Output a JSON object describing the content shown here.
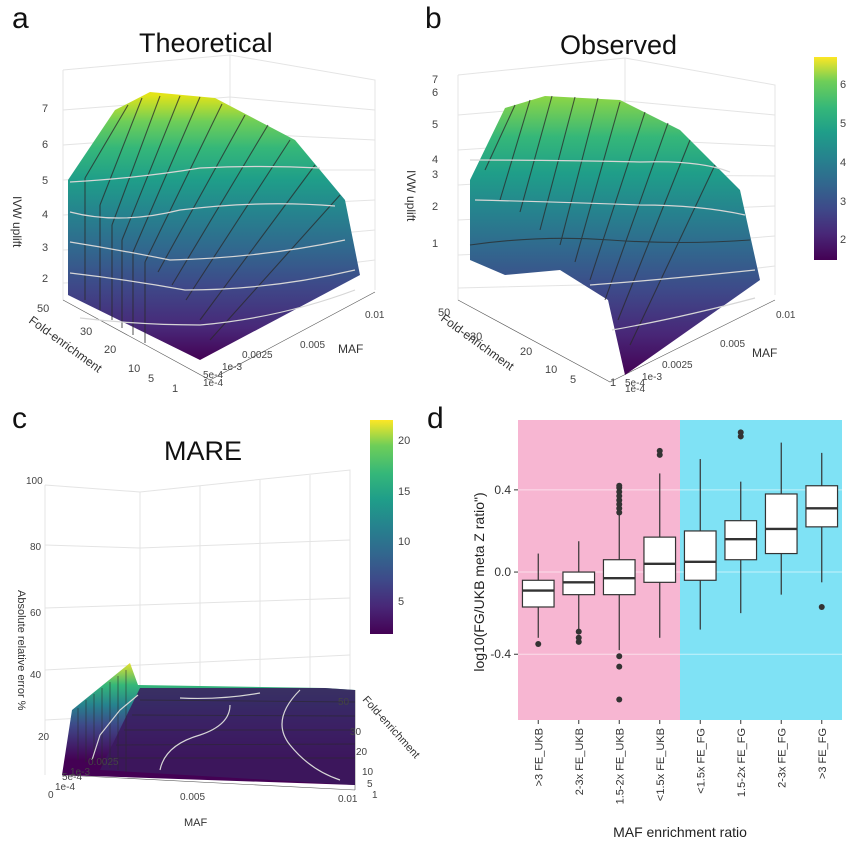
{
  "panels": {
    "a": {
      "letter": "a",
      "title": "Theoretical"
    },
    "b": {
      "letter": "b",
      "title": "Observed"
    },
    "c": {
      "letter": "c",
      "title": "MARE"
    },
    "d": {
      "letter": "d"
    }
  },
  "chart_data": [
    {
      "type": "surface",
      "panel": "a",
      "title": "Theoretical",
      "zlabel": "IVW uplift",
      "xlabel": "Fold-enrichment",
      "ylabel": "MAF",
      "z_ticks": [
        "2",
        "3",
        "4",
        "5",
        "6",
        "7"
      ],
      "x_ticks": [
        "50",
        "30",
        "20",
        "10",
        "5",
        "1"
      ],
      "y_ticks": [
        "1e-4",
        "5e-4",
        "1e-3",
        "0.0025",
        "0.005",
        "0.01"
      ],
      "z_range": [
        1,
        7.5
      ],
      "colorscale": "viridis"
    },
    {
      "type": "surface",
      "panel": "b",
      "title": "Observed",
      "zlabel": "IVW uplift",
      "xlabel": "Fold-enrichment",
      "ylabel": "MAF",
      "z_ticks": [
        "1",
        "2",
        "3",
        "4",
        "5",
        "6",
        "7"
      ],
      "x_ticks": [
        "50",
        "30",
        "20",
        "10",
        "5",
        "1"
      ],
      "y_ticks": [
        "1e-4",
        "5e-4",
        "1e-3",
        "0.0025",
        "0.005",
        "0.01"
      ],
      "colorbar_ticks": [
        "2",
        "3",
        "4",
        "5",
        "6"
      ],
      "colorscale": "viridis"
    },
    {
      "type": "surface",
      "panel": "c",
      "title": "MARE",
      "zlabel": "Absolute relative error %",
      "xlabel": "MAF",
      "ylabel": "Fold-enrichment",
      "z_ticks": [
        "20",
        "40",
        "60",
        "80",
        "100"
      ],
      "x_ticks": [
        "0",
        "1e-4",
        "5e-4",
        "1e-3",
        "0.0025",
        "0.005",
        "0.01"
      ],
      "y_ticks": [
        "1",
        "5",
        "10",
        "20",
        "30",
        "50"
      ],
      "colorbar_ticks": [
        "5",
        "10",
        "15",
        "20"
      ],
      "colorscale": "viridis"
    },
    {
      "type": "box",
      "panel": "d",
      "xlabel": "MAF enrichment ratio",
      "ylabel": "log10(FG/UKB meta Z ratio\")",
      "y_ticks": [
        "-0.4",
        "0.0",
        "0.4"
      ],
      "ylim": [
        -0.72,
        0.74
      ],
      "background_regions": [
        {
          "from": 0,
          "to": 4,
          "color": "#f7b6d2"
        },
        {
          "from": 4,
          "to": 8,
          "color": "#7fe2f5"
        }
      ],
      "categories": [
        ">3 FE_UKB",
        "2-3x FE_UKB",
        "1.5-2x FE_UKB",
        "<1.5x FE_UKB",
        "<1.5x FE_FG",
        "1.5-2x FE_FG",
        "2-3x FE_FG",
        ">3 FE_FG"
      ],
      "boxes": [
        {
          "min": -0.32,
          "q1": -0.17,
          "median": -0.09,
          "q3": -0.04,
          "max": 0.09,
          "outliers": [
            -0.35
          ]
        },
        {
          "min": -0.28,
          "q1": -0.11,
          "median": -0.05,
          "q3": 0.0,
          "max": 0.15,
          "outliers": [
            -0.29,
            -0.32,
            -0.34
          ]
        },
        {
          "min": -0.38,
          "q1": -0.11,
          "median": -0.03,
          "q3": 0.06,
          "max": 0.28,
          "outliers": [
            0.29,
            0.31,
            0.33,
            0.35,
            0.37,
            0.39,
            0.41,
            0.42,
            -0.41,
            -0.46,
            -0.62
          ]
        },
        {
          "min": -0.32,
          "q1": -0.05,
          "median": 0.04,
          "q3": 0.17,
          "max": 0.48,
          "outliers": [
            0.57,
            0.59
          ]
        },
        {
          "min": -0.28,
          "q1": -0.04,
          "median": 0.05,
          "q3": 0.2,
          "max": 0.55,
          "outliers": []
        },
        {
          "min": -0.2,
          "q1": 0.06,
          "median": 0.16,
          "q3": 0.25,
          "max": 0.44,
          "outliers": [
            0.66,
            0.68
          ]
        },
        {
          "min": -0.11,
          "q1": 0.09,
          "median": 0.21,
          "q3": 0.38,
          "max": 0.63,
          "outliers": []
        },
        {
          "min": -0.05,
          "q1": 0.22,
          "median": 0.31,
          "q3": 0.42,
          "max": 0.58,
          "outliers": [
            -0.17
          ]
        }
      ]
    }
  ]
}
